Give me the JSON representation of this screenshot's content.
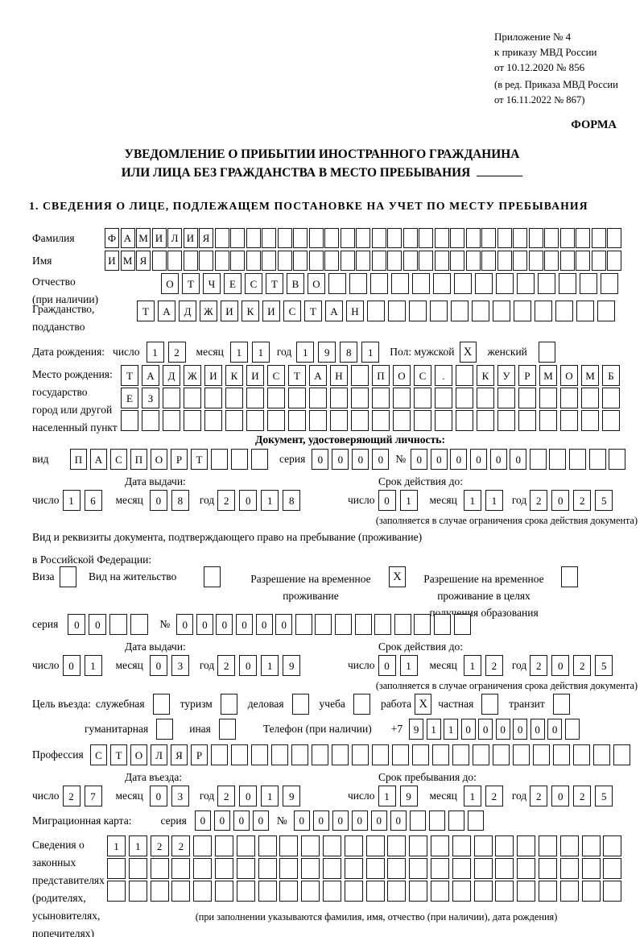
{
  "labels": {
    "day": "число",
    "month": "месяц",
    "year": "год",
    "series": "серия",
    "number": "№",
    "plus7": "+7"
  },
  "annex": {
    "lines": [
      "Приложение № 4",
      "к приказу МВД России",
      "от 10.12.2020 № 856"
    ],
    "edition": [
      "(в ред. Приказа МВД России",
      "от 16.11.2022 № 867)"
    ]
  },
  "forma": "ФОРМА",
  "title": {
    "line1": "УВЕДОМЛЕНИЕ О ПРИБЫТИИ ИНОСТРАННОГО ГРАЖДАНИНА",
    "line2": "ИЛИ ЛИЦА БЕЗ ГРАЖДАНСТВА В МЕСТО ПРЕБЫВАНИЯ"
  },
  "section1": "1. СВЕДЕНИЯ О ЛИЦЕ, ПОДЛЕЖАЩЕМ ПОСТАНОВКЕ НА УЧЕТ ПО МЕСТУ ПРЕБЫВАНИЯ",
  "person": {
    "surname": {
      "label": "Фамилия",
      "value": {
        "text": "ФАМИЛИЯ",
        "cells": 33
      }
    },
    "name": {
      "label": "Имя",
      "value": {
        "text": "ИМЯ",
        "cells": 33
      }
    },
    "patronymic": {
      "label1": "Отчество",
      "label2": "(при наличии)",
      "value": {
        "text": "ОТЧЕСТВО",
        "cells": 22
      }
    },
    "citizenship": {
      "label1": "Гражданство,",
      "label2": "подданство",
      "value": {
        "text": "ТАДЖИКИСТАН",
        "cells": 23
      }
    },
    "birth_date": {
      "label": "Дата рождения:",
      "day": "12",
      "month": "11",
      "year": "1981"
    },
    "gender": {
      "label": "Пол:",
      "male": "мужской",
      "male_checked": true,
      "female": "женский",
      "female_checked": false
    },
    "birth_place": {
      "label_lines": [
        "Место рождения:",
        "государство",
        "город или другой",
        "населенный пункт"
      ],
      "row1": {
        "text": "ТАДЖИКИСТАН ПОС. КУРМОМБ",
        "cells": 24
      },
      "row2": {
        "text": "ЕЗ",
        "cells": 24
      },
      "row3": {
        "text": "",
        "cells": 24
      }
    }
  },
  "identity_doc": {
    "heading": "Документ, удостоверяющий личность:",
    "kind_label": "вид",
    "kind": {
      "text": "ПАСПОРТ",
      "cells": 10
    },
    "series": {
      "text": "0000",
      "cells": 4
    },
    "number": {
      "text": "000000",
      "cells": 11
    },
    "issue_heading": "Дата выдачи:",
    "issue": {
      "day": "16",
      "month": "08",
      "year": "2018"
    },
    "valid_heading": "Срок действия до:",
    "valid": {
      "day": "01",
      "month": "11",
      "year": "2025"
    },
    "note": "(заполняется в случае ограничения срока действия документа)"
  },
  "residence_doc": {
    "intro1": "Вид и реквизиты документа, подтверждающего право на пребывание (проживание)",
    "intro2": "в Российской Федерации:",
    "options": [
      {
        "label": "Виза",
        "checked": false
      },
      {
        "label": "Вид на жительство",
        "checked": false
      },
      {
        "label": "Разрешение на временное проживание",
        "checked": true
      },
      {
        "label": "Разрешение на временное проживание в целях получения образования",
        "checked": false
      }
    ],
    "series": {
      "text": "00",
      "cells": 4
    },
    "number": {
      "text": "000000",
      "cells": 15
    },
    "issue_heading": "Дата выдачи:",
    "issue": {
      "day": "01",
      "month": "03",
      "year": "2019"
    },
    "valid_heading": "Срок действия до:",
    "valid": {
      "day": "01",
      "month": "12",
      "year": "2025"
    },
    "note": "(заполняется в случае ограничения срока действия документа)"
  },
  "visit": {
    "purpose_label": "Цель въезда:",
    "purposes": [
      {
        "label": "служебная",
        "checked": false
      },
      {
        "label": "туризм",
        "checked": false
      },
      {
        "label": "деловая",
        "checked": false
      },
      {
        "label": "учеба",
        "checked": false
      },
      {
        "label": "работа",
        "checked": true
      },
      {
        "label": "частная",
        "checked": false
      },
      {
        "label": "транзит",
        "checked": false
      },
      {
        "label": "гуманитарная",
        "checked": false
      },
      {
        "label": "иная",
        "checked": false
      }
    ],
    "phone_label": "Телефон (при наличии)",
    "phone": {
      "text": "911000000",
      "cells": 10
    },
    "profession_label": "Профессия",
    "profession": {
      "text": "СТОЛЯР",
      "cells": 27
    },
    "entry_heading": "Дата въезда:",
    "entry": {
      "day": "27",
      "month": "03",
      "year": "2019"
    },
    "stay_heading": "Срок пребывания до:",
    "stay": {
      "day": "19",
      "month": "12",
      "year": "2025"
    },
    "migration_card": {
      "label": "Миграционная карта:",
      "series": {
        "text": "0000",
        "cells": 4
      },
      "number": {
        "text": "000000",
        "cells": 10
      }
    },
    "representatives": {
      "label_lines": [
        "Сведения о",
        "законных",
        "представителях",
        "(родителях,",
        "усыновителях,",
        "попечителях)"
      ],
      "row1": {
        "text": "1122",
        "cells": 24
      },
      "row2": {
        "text": "",
        "cells": 24
      },
      "row3": {
        "text": "",
        "cells": 24
      },
      "note": "(при заполнении указываются фамилия, имя, отчество (при наличии), дата рождения)"
    }
  }
}
